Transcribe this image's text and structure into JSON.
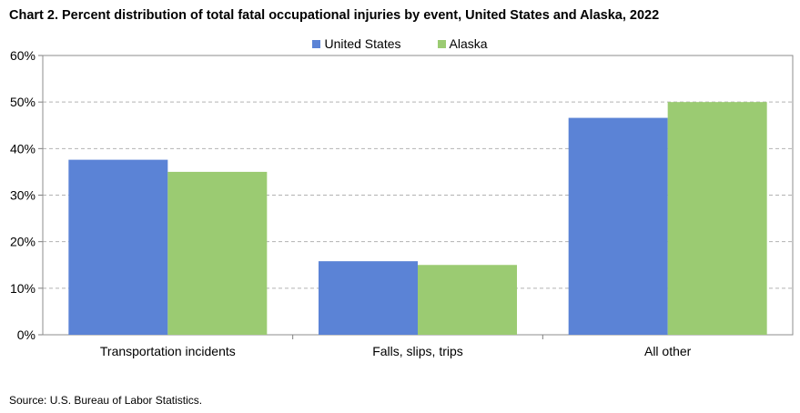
{
  "title": "Chart 2. Percent distribution of total fatal occupational injuries by event, United States and Alaska, 2022",
  "source": "Source:  U.S. Bureau  of Labor Statistics.",
  "chart_data": {
    "type": "bar",
    "categories": [
      "Transportation incidents",
      "Falls, slips, trips",
      "All other"
    ],
    "series": [
      {
        "name": "United States",
        "color": "#5b83d6",
        "values": [
          37.6,
          15.8,
          46.6
        ]
      },
      {
        "name": "Alaska",
        "color": "#9bcb72",
        "values": [
          35.0,
          15.0,
          50.0
        ]
      }
    ],
    "ylim": [
      0,
      60
    ],
    "yticks": [
      "0%",
      "10%",
      "20%",
      "30%",
      "40%",
      "50%",
      "60%"
    ],
    "grid": true,
    "legend_position": "top-center"
  }
}
